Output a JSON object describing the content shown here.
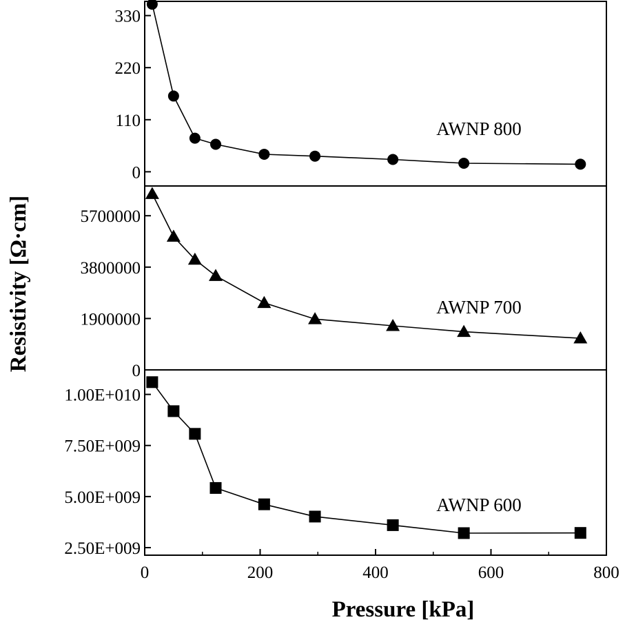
{
  "chart_data": {
    "type": "line",
    "xlabel": "Pressure [kPa]",
    "ylabel": "Resistivity [Ω·cm]",
    "xlim": [
      0,
      800
    ],
    "xticks": [
      0,
      200,
      400,
      600,
      800
    ],
    "xtick_labels": [
      "0",
      "200",
      "400",
      "600",
      "800"
    ],
    "panels": [
      {
        "name": "AWNP 800",
        "marker": "circle",
        "ylim": [
          -30,
          360
        ],
        "yticks": [
          0,
          110,
          220,
          330
        ],
        "ytick_labels": [
          "0",
          "110",
          "220",
          "330"
        ],
        "x": [
          13,
          50,
          87,
          123,
          207,
          295,
          430,
          553,
          755
        ],
        "y": [
          354,
          160,
          71,
          58,
          37,
          33,
          26,
          18,
          16
        ]
      },
      {
        "name": "AWNP 700",
        "marker": "triangle",
        "ylim": [
          0,
          6800000
        ],
        "yticks": [
          0,
          1900000,
          3800000,
          5700000
        ],
        "ytick_labels": [
          "0",
          "1900000",
          "3800000",
          "5700000"
        ],
        "x": [
          13,
          50,
          87,
          123,
          207,
          295,
          430,
          553,
          755
        ],
        "y": [
          6510000,
          4930000,
          4080000,
          3480000,
          2480000,
          1880000,
          1630000,
          1410000,
          1170000
        ]
      },
      {
        "name": "AWNP 600",
        "marker": "square",
        "ylim": [
          2130000000,
          11200000000
        ],
        "yticks": [
          2500000000,
          5000000000,
          7500000000,
          10000000000
        ],
        "ytick_labels": [
          "2.50E+009",
          "5.00E+009",
          "7.50E+009",
          "1.00E+010"
        ],
        "x": [
          13,
          50,
          87,
          123,
          207,
          295,
          430,
          553,
          755
        ],
        "y": [
          10600000000,
          9180000000,
          8070000000,
          5420000000,
          4620000000,
          4020000000,
          3600000000,
          3210000000,
          3220000000
        ]
      }
    ]
  }
}
